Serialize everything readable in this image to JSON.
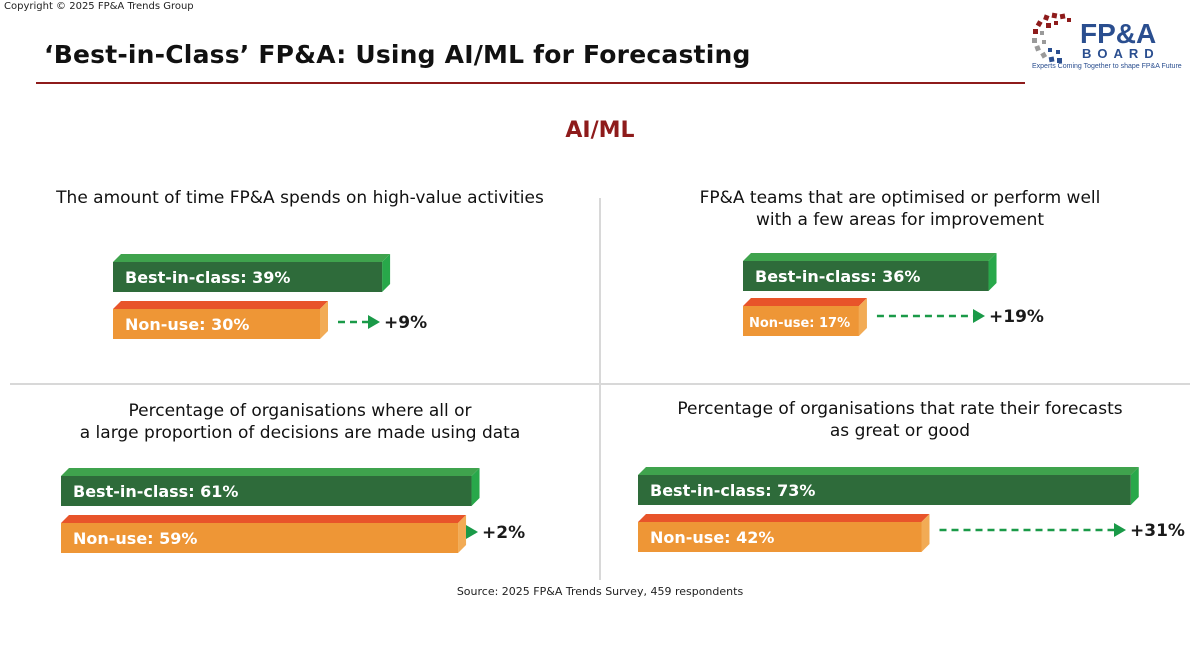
{
  "copyright": "Copyright © 2025 FP&A Trends Group",
  "title": "‘Best-in-Class’ FP&A: Using AI/ML for Forecasting",
  "logo": {
    "name": "FP&A",
    "sub": "BOARD",
    "tagline": "Experts Coming Together to shape FP&A Future"
  },
  "section_heading": "AI/ML",
  "source": "Source: 2025 FP&A Trends Survey, 459 respondents",
  "colors": {
    "best_front": "#2e6b3a",
    "best_top": "#3fa34d",
    "best_side": "#28a84a",
    "non_front": "#ee9636",
    "non_top": "#e8542a",
    "non_side": "#f2ab55",
    "arrow": "#1a9a48"
  },
  "chart_data": [
    {
      "type": "bar",
      "title_lines": [
        "The amount of time FP&A spends on high-value activities"
      ],
      "series": [
        {
          "name": "Best-in-class",
          "value": 39,
          "label": "Best-in-class: 39%"
        },
        {
          "name": "Non-use",
          "value": 30,
          "label": "Non-use: 30%"
        }
      ],
      "difference": "+9%"
    },
    {
      "type": "bar",
      "title_lines": [
        "FP&A teams that are optimised or perform well",
        "with a few areas for improvement"
      ],
      "series": [
        {
          "name": "Best-in-class",
          "value": 36,
          "label": "Best-in-class: 36%"
        },
        {
          "name": "Non-use",
          "value": 17,
          "label": "Non-use: 17%"
        }
      ],
      "difference": "+19%"
    },
    {
      "type": "bar",
      "title_lines": [
        "Percentage of organisations where all or",
        "a large proportion of decisions are made using data"
      ],
      "series": [
        {
          "name": "Best-in-class",
          "value": 61,
          "label": "Best-in-class: 61%"
        },
        {
          "name": "Non-use",
          "value": 59,
          "label": "Non-use: 59%"
        }
      ],
      "difference": "+2%"
    },
    {
      "type": "bar",
      "title_lines": [
        "Percentage of organisations that rate their forecasts",
        "as great or good"
      ],
      "series": [
        {
          "name": "Best-in-class",
          "value": 73,
          "label": "Best-in-class: 73%"
        },
        {
          "name": "Non-use",
          "value": 42,
          "label": "Non-use: 42%"
        }
      ],
      "difference": "+31%"
    }
  ]
}
